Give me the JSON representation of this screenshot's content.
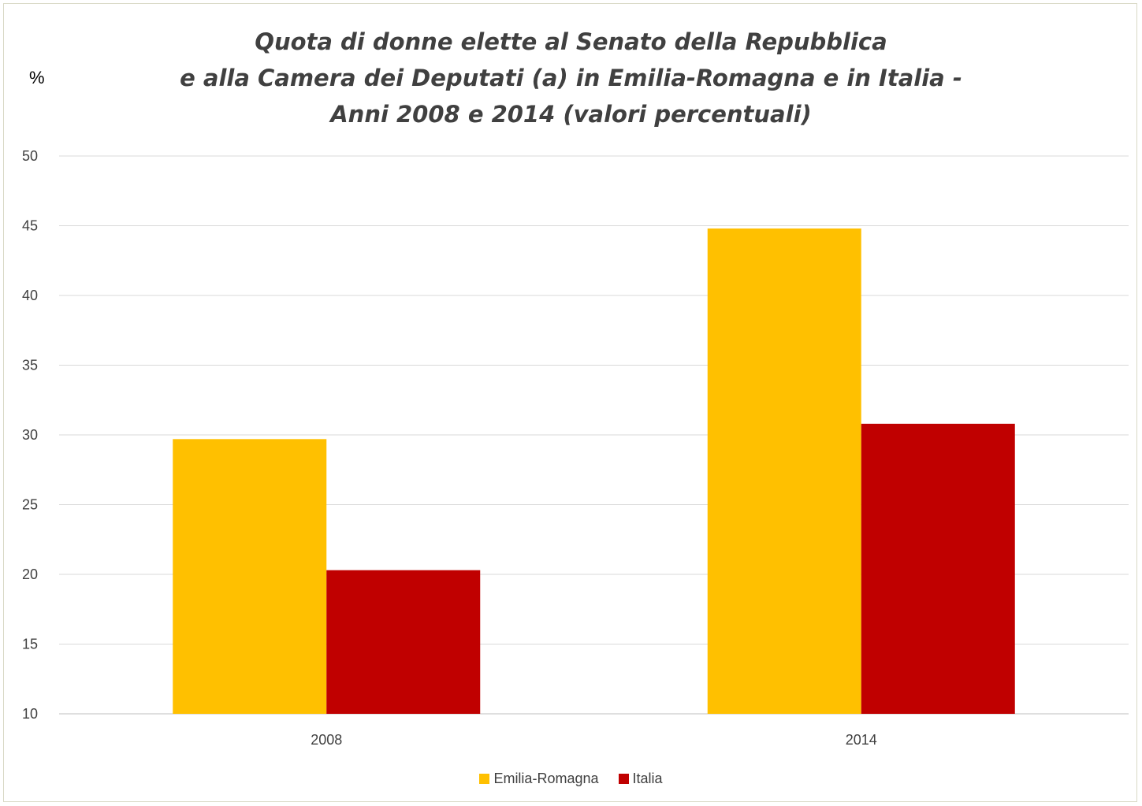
{
  "chart_data": {
    "type": "bar",
    "title_lines": [
      "Quota di donne elette al Senato della Repubblica",
      "e alla Camera dei Deputati (a) in Emilia-Romagna e in Italia -",
      "Anni 2008 e 2014 (valori percentuali)"
    ],
    "ylabel": "%",
    "xlabel": "",
    "categories": [
      "2008",
      "2014"
    ],
    "ylim": [
      10,
      50
    ],
    "yticks": [
      10,
      15,
      20,
      25,
      30,
      35,
      40,
      45,
      50
    ],
    "grid": true,
    "legend_position": "bottom",
    "series": [
      {
        "name": "Emilia-Romagna",
        "color": "#FFC000",
        "values": [
          29.7,
          44.8
        ]
      },
      {
        "name": "Italia",
        "color": "#C00000",
        "values": [
          20.3,
          30.8
        ]
      }
    ]
  }
}
